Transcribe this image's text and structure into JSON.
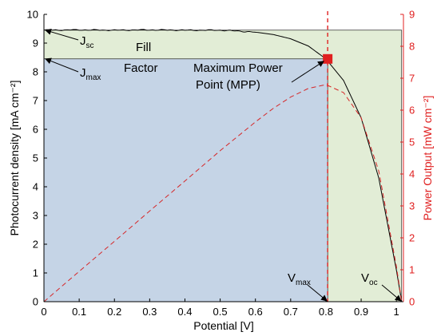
{
  "chart_data": {
    "type": "line",
    "xlabel": "Potential [V]",
    "ylabel_left": "Photocurrent density [mA cm⁻²]",
    "ylabel_right": "Power Output [mW cm⁻²]",
    "xlim": [
      0,
      1.02
    ],
    "ylim_left": [
      0,
      10
    ],
    "ylim_right": [
      0,
      9
    ],
    "x_ticks": [
      "0",
      "0.1",
      "0.2",
      "0.3",
      "0.4",
      "0.5",
      "0.6",
      "0.7",
      "0.8",
      "0.9",
      "1"
    ],
    "y_left_ticks": [
      "0",
      "1",
      "2",
      "3",
      "4",
      "5",
      "6",
      "7",
      "8",
      "9",
      "10"
    ],
    "y_right_ticks": [
      "0",
      "1",
      "2",
      "3",
      "4",
      "5",
      "6",
      "7",
      "8",
      "9"
    ],
    "series": [
      {
        "axis": "left",
        "color": "#000000",
        "style": "solid",
        "x": [
          0,
          0.1,
          0.2,
          0.3,
          0.4,
          0.5,
          0.55,
          0.6,
          0.65,
          0.7,
          0.75,
          0.8,
          0.85,
          0.9,
          0.95,
          1.0,
          1.015
        ],
        "y": [
          9.45,
          9.46,
          9.45,
          9.46,
          9.45,
          9.45,
          9.42,
          9.38,
          9.3,
          9.15,
          8.9,
          8.45,
          7.7,
          6.4,
          4.3,
          1.1,
          0.0
        ]
      },
      {
        "axis": "right",
        "color": "#d62728",
        "style": "dashed",
        "x": [
          0,
          0.1,
          0.2,
          0.3,
          0.4,
          0.5,
          0.55,
          0.6,
          0.65,
          0.7,
          0.75,
          0.8,
          0.85,
          0.9,
          0.95,
          1.0,
          1.015
        ],
        "y": [
          0,
          0.95,
          1.89,
          2.84,
          3.78,
          4.73,
          5.18,
          5.63,
          6.05,
          6.41,
          6.68,
          6.8,
          6.55,
          5.76,
          4.09,
          1.1,
          0.0
        ]
      }
    ],
    "mpp": {
      "x": 0.805,
      "y": 8.45,
      "color": "#e02020"
    },
    "vmax_x": 0.805,
    "voc_x": 1.015,
    "jsc": 9.45,
    "jmax": 8.45,
    "regions": {
      "fill_factor_color": "#c5d4e6",
      "outer_color": "#e2edd6"
    },
    "annotations": {
      "jsc": {
        "main": "J",
        "sub": "sc"
      },
      "jmax": {
        "main": "J",
        "sub": "max"
      },
      "fill_factor_line1": "Fill",
      "fill_factor_line2": "Factor",
      "mpp_line1": "Maximum Power",
      "mpp_line2": "Point (MPP)",
      "vmax": {
        "main": "V",
        "sub": "max"
      },
      "voc": {
        "main": "V",
        "sub": "oc"
      }
    }
  }
}
